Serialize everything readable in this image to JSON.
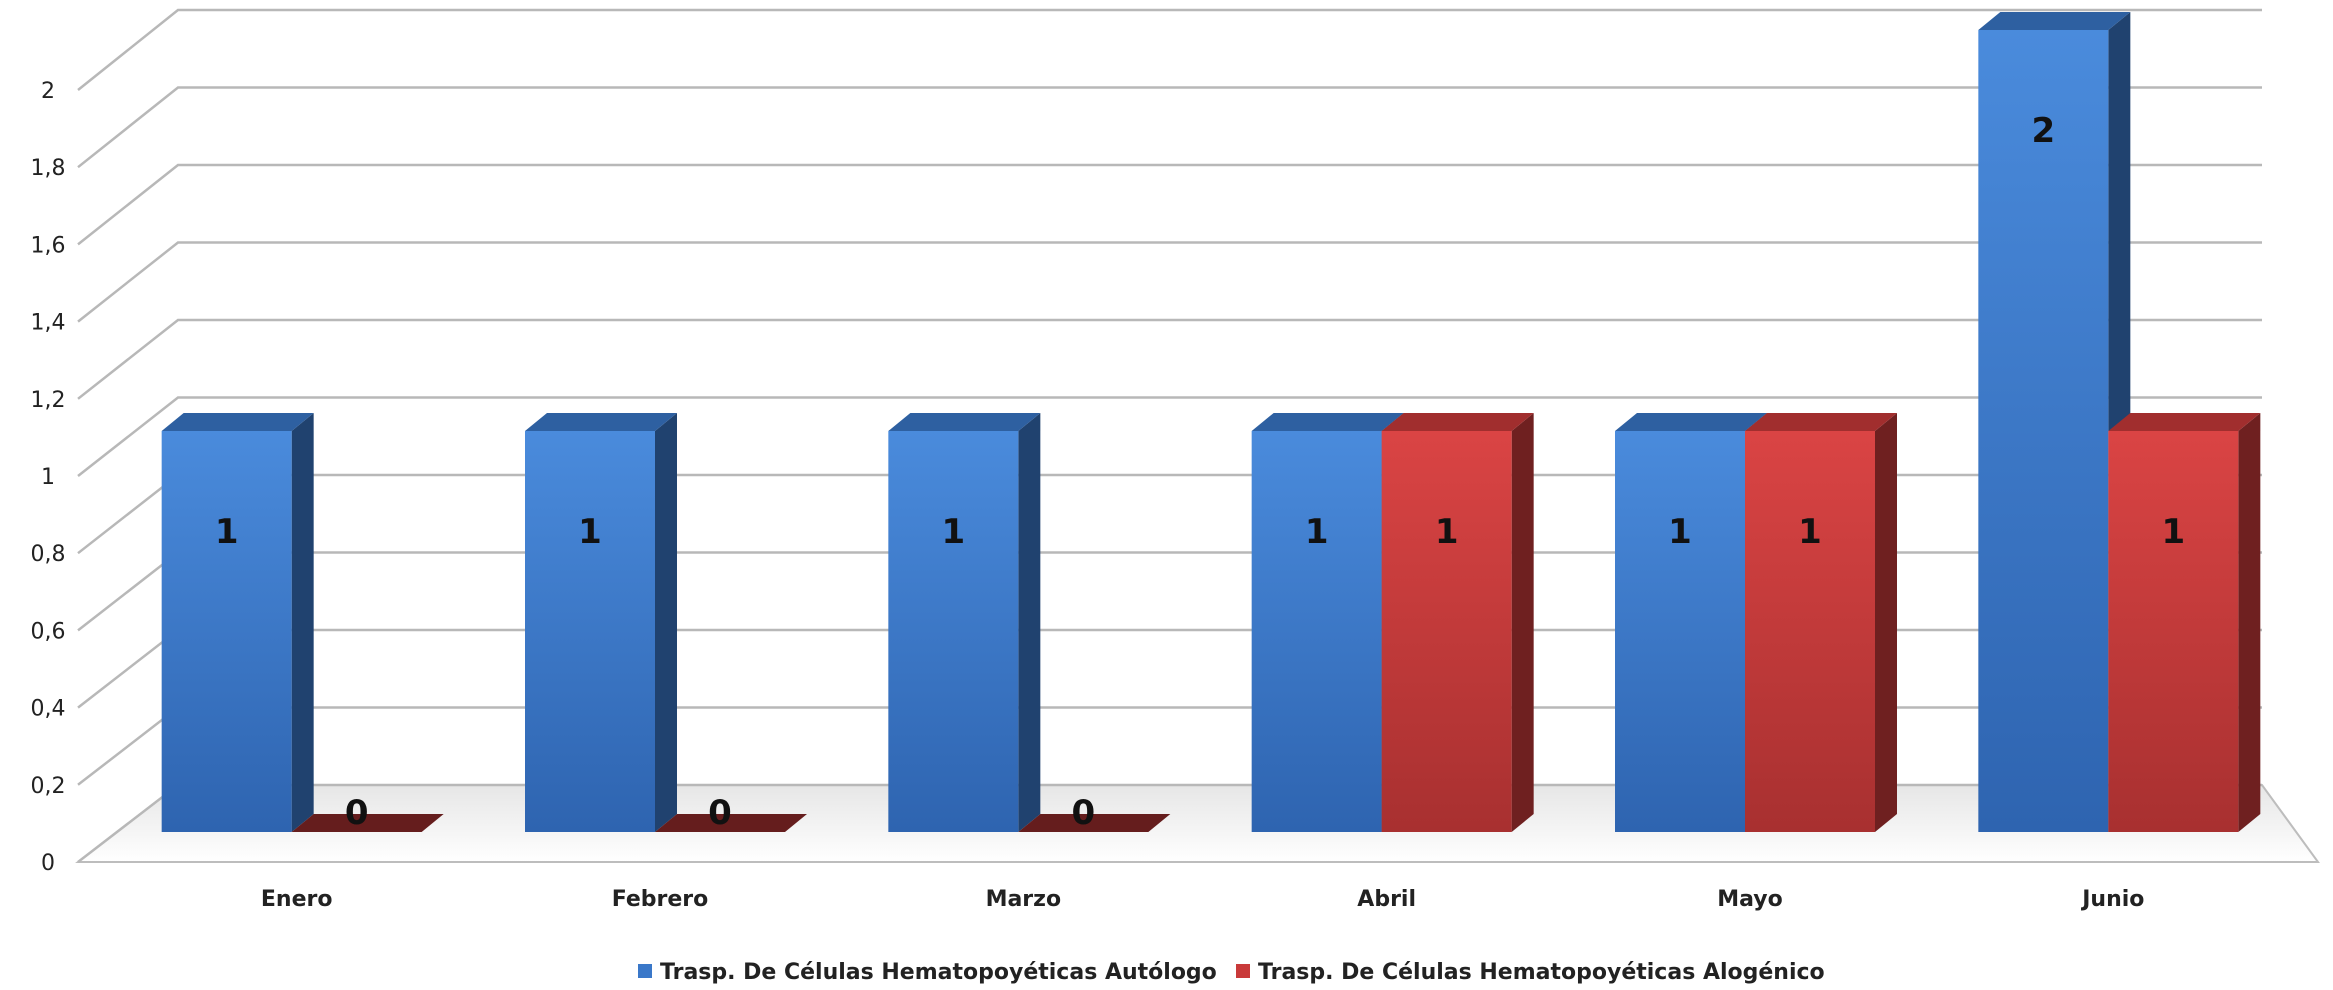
{
  "chart_data": {
    "type": "bar",
    "style": "3d-clustered-column",
    "title": "",
    "xlabel": "",
    "ylabel": "",
    "categories": [
      "Enero",
      "Febrero",
      "Marzo",
      "Abril",
      "Mayo",
      "Junio"
    ],
    "series": [
      {
        "name": "Trasp. De Células Hematopoyéticas Autólogo",
        "color": "#3A78C9",
        "values": [
          1,
          1,
          1,
          1,
          1,
          2
        ]
      },
      {
        "name": "Trasp. De Células Hematopoyéticas Alogénico",
        "color": "#C93A3A",
        "values": [
          0,
          0,
          0,
          1,
          1,
          1
        ]
      }
    ],
    "ylim": [
      0,
      2
    ],
    "yticks": [
      "0",
      "0,2",
      "0,4",
      "0,6",
      "0,8",
      "1",
      "1,2",
      "1,4",
      "1,6",
      "1,8",
      "2"
    ],
    "grid": true,
    "legend_position": "bottom",
    "data_labels": true
  }
}
